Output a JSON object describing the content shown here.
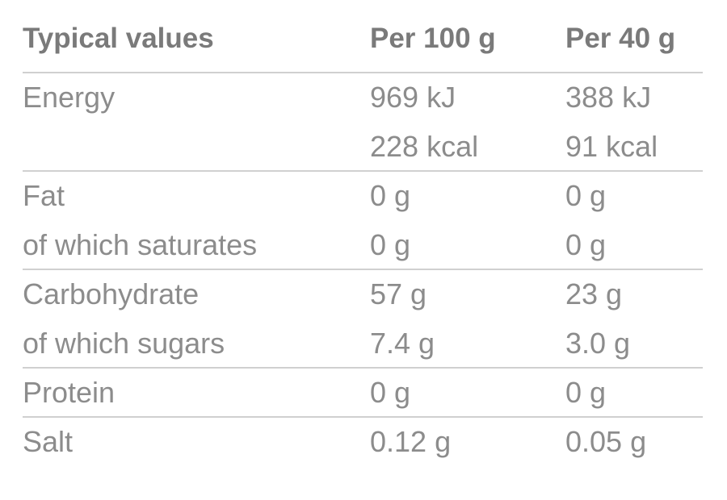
{
  "table": {
    "header": [
      "Typical values",
      "Per 100 g",
      "Per 40 g"
    ],
    "groups": [
      {
        "rows": [
          [
            "Energy",
            "969 kJ",
            "388 kJ"
          ],
          [
            null,
            "228 kcal",
            "91 kcal"
          ]
        ]
      },
      {
        "rows": [
          [
            "Fat",
            "0 g",
            "0 g"
          ],
          [
            "of which saturates",
            "0 g",
            "0 g"
          ]
        ]
      },
      {
        "rows": [
          [
            "Carbohydrate",
            "57 g",
            "23 g"
          ],
          [
            "of which sugars",
            "7.4 g",
            "3.0 g"
          ]
        ]
      },
      {
        "rows": [
          [
            "Protein",
            "0 g",
            "0 g"
          ]
        ]
      },
      {
        "rows": [
          [
            "Salt",
            "0.12 g",
            "0.05 g"
          ]
        ]
      }
    ]
  }
}
